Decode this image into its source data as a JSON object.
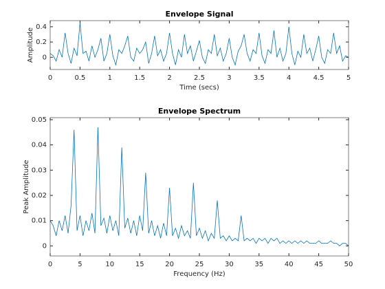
{
  "chart_data": [
    {
      "type": "line",
      "title": "Envelope Signal",
      "xlabel": "Time (secs)",
      "ylabel": "Amplitude",
      "x": [
        0,
        0.05,
        0.1,
        0.15,
        0.2,
        0.25,
        0.3,
        0.35,
        0.4,
        0.45,
        0.5,
        0.55,
        0.6,
        0.65,
        0.7,
        0.75,
        0.8,
        0.85,
        0.9,
        0.95,
        1,
        1.05,
        1.1,
        1.15,
        1.2,
        1.25,
        1.3,
        1.35,
        1.4,
        1.45,
        1.5,
        1.55,
        1.6,
        1.65,
        1.7,
        1.75,
        1.8,
        1.85,
        1.9,
        1.95,
        2,
        2.05,
        2.1,
        2.15,
        2.2,
        2.25,
        2.3,
        2.35,
        2.4,
        2.45,
        2.5,
        2.55,
        2.6,
        2.65,
        2.7,
        2.75,
        2.8,
        2.85,
        2.9,
        2.95,
        3,
        3.05,
        3.1,
        3.15,
        3.2,
        3.25,
        3.3,
        3.35,
        3.4,
        3.45,
        3.5,
        3.55,
        3.6,
        3.65,
        3.7,
        3.75,
        3.8,
        3.85,
        3.9,
        3.95,
        4,
        4.05,
        4.1,
        4.15,
        4.2,
        4.25,
        4.3,
        4.35,
        4.4,
        4.45,
        4.5,
        4.55,
        4.6,
        4.65,
        4.7,
        4.75,
        4.8,
        4.85,
        4.9,
        4.95,
        5
      ],
      "series": [
        {
          "color": "#0072bd",
          "values": [
            0.05,
            0.02,
            -0.05,
            0.1,
            0.0,
            0.32,
            0.05,
            -0.08,
            0.12,
            0.02,
            0.45,
            0.05,
            0.08,
            -0.05,
            0.15,
            0.0,
            0.1,
            0.25,
            -0.05,
            0.05,
            0.3,
            0.02,
            -0.1,
            0.1,
            0.05,
            0.15,
            0.28,
            0.0,
            -0.05,
            0.12,
            0.05,
            0.1,
            0.2,
            -0.08,
            0.05,
            0.28,
            0.02,
            0.1,
            -0.05,
            0.05,
            0.32,
            0.05,
            -0.1,
            0.1,
            0.0,
            0.3,
            0.05,
            0.15,
            -0.05,
            0.08,
            0.22,
            0.0,
            -0.08,
            0.1,
            0.05,
            0.3,
            0.02,
            0.12,
            -0.05,
            0.05,
            0.25,
            0.0,
            -0.1,
            0.08,
            0.15,
            0.3,
            0.05,
            -0.05,
            0.1,
            0.05,
            0.32,
            0.02,
            -0.08,
            0.1,
            0.05,
            0.35,
            0.0,
            0.12,
            -0.05,
            0.05,
            0.4,
            0.05,
            -0.1,
            0.08,
            0.0,
            0.3,
            0.05,
            0.12,
            -0.05,
            0.1,
            0.28,
            0.0,
            -0.08,
            0.1,
            0.05,
            0.32,
            0.05,
            0.15,
            -0.05,
            0.02,
            0.0
          ]
        }
      ],
      "xlim": [
        0,
        5
      ],
      "xticks": [
        0,
        0.5,
        1,
        1.5,
        2,
        2.5,
        3,
        3.5,
        4,
        4.5,
        5
      ],
      "ylim": [
        -0.16,
        0.48
      ],
      "yticks": [
        0,
        0.2,
        0.4
      ]
    },
    {
      "type": "line",
      "title": "Envelope Spectrum",
      "xlabel": "Frequency (Hz)",
      "ylabel": "Peak Amplitude",
      "x": [
        0,
        0.5,
        1,
        1.5,
        2,
        2.5,
        3,
        3.5,
        4,
        4.5,
        5,
        5.5,
        6,
        6.5,
        7,
        7.5,
        8,
        8.5,
        9,
        9.5,
        10,
        10.5,
        11,
        11.5,
        12,
        12.5,
        13,
        13.5,
        14,
        14.5,
        15,
        15.5,
        16,
        16.5,
        17,
        17.5,
        18,
        18.5,
        19,
        19.5,
        20,
        20.5,
        21,
        21.5,
        22,
        22.5,
        23,
        23.5,
        24,
        24.5,
        25,
        25.5,
        26,
        26.5,
        27,
        27.5,
        28,
        28.5,
        29,
        29.5,
        30,
        30.5,
        31,
        31.5,
        32,
        32.5,
        33,
        33.5,
        34,
        34.5,
        35,
        35.5,
        36,
        36.5,
        37,
        37.5,
        38,
        38.5,
        39,
        39.5,
        40,
        40.5,
        41,
        41.5,
        42,
        42.5,
        43,
        43.5,
        44,
        44.5,
        45,
        45.5,
        46,
        46.5,
        47,
        47.5,
        48,
        48.5,
        49,
        49.5,
        50
      ],
      "series": [
        {
          "color": "#0072bd",
          "values": [
            0.01,
            0.008,
            0.004,
            0.01,
            0.006,
            0.012,
            0.005,
            0.016,
            0.046,
            0.006,
            0.012,
            0.004,
            0.01,
            0.006,
            0.013,
            0.005,
            0.047,
            0.008,
            0.011,
            0.005,
            0.012,
            0.006,
            0.01,
            0.004,
            0.039,
            0.007,
            0.011,
            0.005,
            0.01,
            0.004,
            0.012,
            0.006,
            0.029,
            0.005,
            0.01,
            0.004,
            0.008,
            0.003,
            0.009,
            0.004,
            0.023,
            0.004,
            0.007,
            0.003,
            0.008,
            0.004,
            0.006,
            0.003,
            0.025,
            0.004,
            0.007,
            0.003,
            0.006,
            0.002,
            0.005,
            0.003,
            0.018,
            0.003,
            0.004,
            0.002,
            0.004,
            0.002,
            0.003,
            0.002,
            0.012,
            0.002,
            0.003,
            0.002,
            0.003,
            0.001,
            0.003,
            0.002,
            0.003,
            0.001,
            0.003,
            0.002,
            0.003,
            0.001,
            0.002,
            0.001,
            0.002,
            0.001,
            0.002,
            0.001,
            0.002,
            0.001,
            0.002,
            0.001,
            0.001,
            0.001,
            0.002,
            0.001,
            0.001,
            0.001,
            0.002,
            0.001,
            0.001,
            0.0,
            0.001,
            0.001,
            0.0
          ]
        }
      ],
      "xlim": [
        0,
        50
      ],
      "xticks": [
        0,
        5,
        10,
        15,
        20,
        25,
        30,
        35,
        40,
        45,
        50
      ],
      "ylim": [
        -0.004,
        0.0508
      ],
      "yticks": [
        0,
        0.01,
        0.02,
        0.03,
        0.04,
        0.05
      ]
    }
  ]
}
